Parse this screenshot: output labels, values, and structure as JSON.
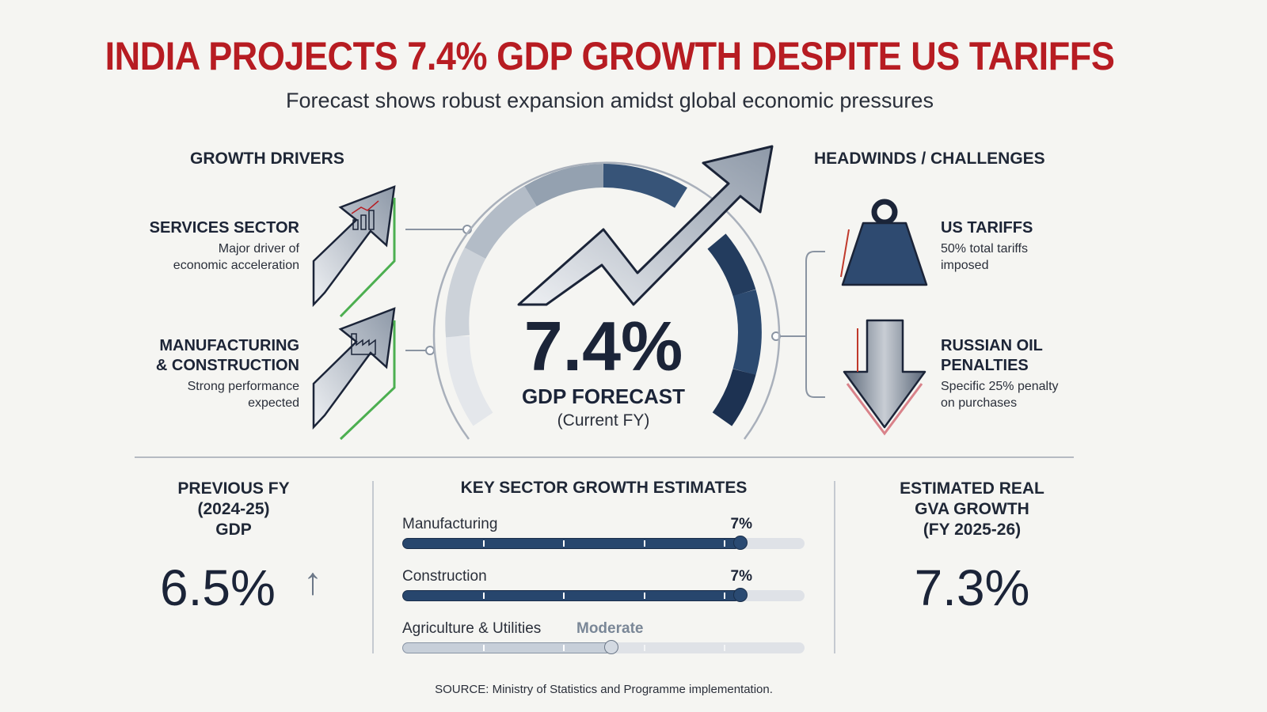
{
  "header": {
    "title": "INDIA PROJECTS 7.4% GDP GROWTH DESPITE US TARIFFS",
    "subtitle": "Forecast shows robust expansion amidst global economic pressures"
  },
  "growth_drivers": {
    "heading": "GROWTH DRIVERS",
    "items": [
      {
        "title": "SERVICES SECTOR",
        "desc_line1": "Major driver of",
        "desc_line2": "economic acceleration",
        "icon": "bar-chart-arrow-icon"
      },
      {
        "title_line1": "MANUFACTURING",
        "title_line2": "& CONSTRUCTION",
        "desc_line1": "Strong performance",
        "desc_line2": "expected",
        "icon": "factory-arrow-icon"
      }
    ]
  },
  "gauge": {
    "value": "7.4%",
    "label": "GDP FORECAST",
    "sublabel": "(Current FY)"
  },
  "headwinds": {
    "heading": "HEADWINDS / CHALLENGES",
    "items": [
      {
        "title": "US TARIFFS",
        "desc_line1": "50% total tariffs",
        "desc_line2": "imposed",
        "icon": "weight-icon"
      },
      {
        "title_line1": "RUSSIAN OIL",
        "title_line2": "PENALTIES",
        "desc_line1": "Specific 25% penalty",
        "desc_line2": "on purchases",
        "icon": "down-arrow-icon"
      }
    ]
  },
  "previous_fy": {
    "line1": "PREVIOUS FY",
    "line2": "(2024-25)",
    "line3": "GDP",
    "value": "6.5%",
    "arrow": "↑"
  },
  "sectors": {
    "heading": "KEY SECTOR GROWTH ESTIMATES",
    "items": [
      {
        "name": "Manufacturing",
        "value": "7%",
        "fill_fraction": 0.84
      },
      {
        "name": "Construction",
        "value": "7%",
        "fill_fraction": 0.84
      },
      {
        "name": "Agriculture & Utilities",
        "value": "Moderate",
        "fill_fraction": 0.52
      }
    ]
  },
  "gva": {
    "line1": "ESTIMATED REAL",
    "line2": "GVA GROWTH",
    "line3": "(FY 2025-26)",
    "value": "7.3%"
  },
  "footer": {
    "source": "SOURCE: Ministry of Statistics and Programme implementation."
  },
  "colors": {
    "title_red": "#b71c22",
    "navy": "#1b2438",
    "bar_blue": "#27466d",
    "growth_green": "#4caf50",
    "warning_red": "#c0392b"
  }
}
